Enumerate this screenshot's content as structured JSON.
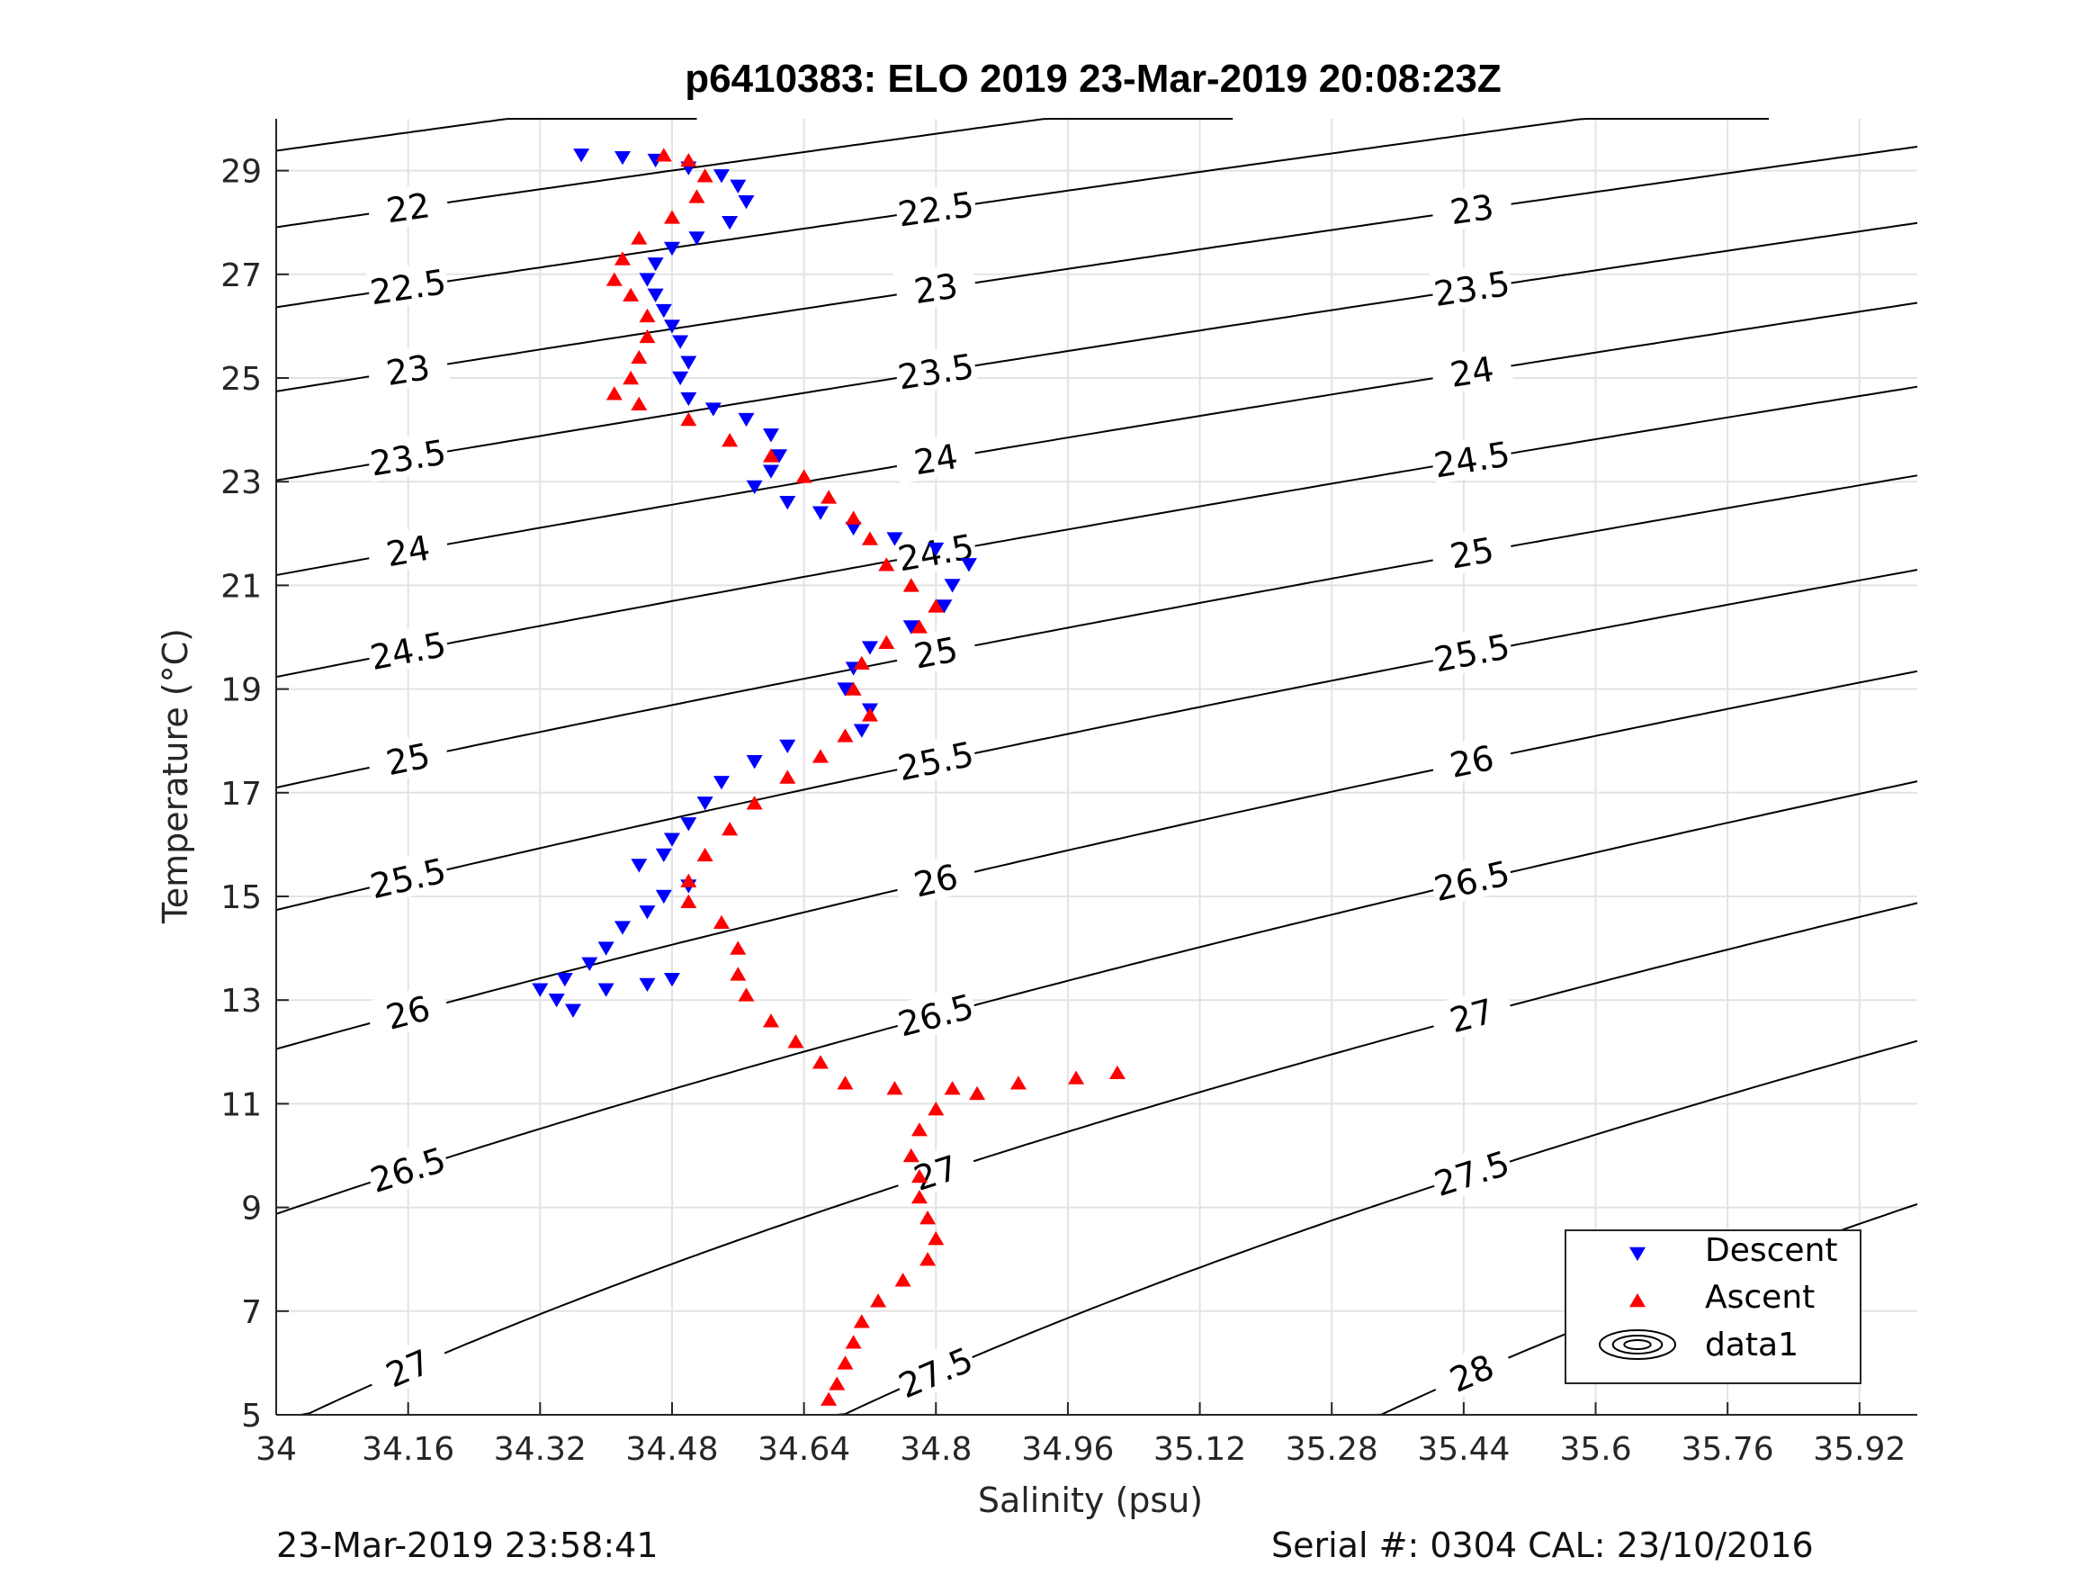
{
  "chart_data": {
    "type": "scatter",
    "title": "p6410383: ELO 2019 23-Mar-2019 20:08:23Z",
    "xlabel": "Salinity (psu)",
    "ylabel": "Temperature (°C)",
    "xlim": [
      34,
      35.99
    ],
    "ylim": [
      5,
      30
    ],
    "xticks": [
      "34",
      "34.16",
      "34.32",
      "34.48",
      "34.64",
      "34.8",
      "34.96",
      "35.12",
      "35.28",
      "35.44",
      "35.6",
      "35.76",
      "35.92"
    ],
    "yticks": [
      "5",
      "7",
      "9",
      "11",
      "13",
      "15",
      "17",
      "19",
      "21",
      "23",
      "25",
      "27",
      "29"
    ],
    "grid": true,
    "legend_position": "bottom-right",
    "legend": [
      "Descent",
      "Ascent",
      "data1"
    ],
    "contour_levels": [
      "21.5",
      "22",
      "22.5",
      "23",
      "23.5",
      "24",
      "24.5",
      "25",
      "25.5",
      "26",
      "26.5",
      "27",
      "27.5",
      "28"
    ],
    "colors": {
      "descent": "#0000ff",
      "ascent": "#ff0000",
      "contour": "#000000",
      "grid": "#e3e3e3"
    },
    "series": [
      {
        "name": "Descent",
        "marker": "triangle-down",
        "points": [
          [
            34.37,
            29.3
          ],
          [
            34.42,
            29.25
          ],
          [
            34.46,
            29.2
          ],
          [
            34.5,
            29.05
          ],
          [
            34.54,
            28.9
          ],
          [
            34.56,
            28.7
          ],
          [
            34.57,
            28.4
          ],
          [
            34.55,
            28.0
          ],
          [
            34.51,
            27.7
          ],
          [
            34.48,
            27.5
          ],
          [
            34.46,
            27.2
          ],
          [
            34.45,
            26.9
          ],
          [
            34.46,
            26.6
          ],
          [
            34.47,
            26.3
          ],
          [
            34.48,
            26.0
          ],
          [
            34.49,
            25.7
          ],
          [
            34.5,
            25.3
          ],
          [
            34.49,
            25.0
          ],
          [
            34.5,
            24.6
          ],
          [
            34.53,
            24.4
          ],
          [
            34.57,
            24.2
          ],
          [
            34.6,
            23.9
          ],
          [
            34.61,
            23.5
          ],
          [
            34.6,
            23.2
          ],
          [
            34.58,
            22.9
          ],
          [
            34.62,
            22.6
          ],
          [
            34.66,
            22.4
          ],
          [
            34.7,
            22.1
          ],
          [
            34.75,
            21.9
          ],
          [
            34.8,
            21.7
          ],
          [
            34.84,
            21.4
          ],
          [
            34.82,
            21.0
          ],
          [
            34.81,
            20.6
          ],
          [
            34.77,
            20.2
          ],
          [
            34.72,
            19.8
          ],
          [
            34.7,
            19.4
          ],
          [
            34.69,
            19.0
          ],
          [
            34.72,
            18.6
          ],
          [
            34.71,
            18.2
          ],
          [
            34.62,
            17.9
          ],
          [
            34.58,
            17.6
          ],
          [
            34.54,
            17.2
          ],
          [
            34.52,
            16.8
          ],
          [
            34.5,
            16.4
          ],
          [
            34.48,
            16.1
          ],
          [
            34.47,
            15.8
          ],
          [
            34.44,
            15.6
          ],
          [
            34.5,
            15.2
          ],
          [
            34.47,
            15.0
          ],
          [
            34.45,
            14.7
          ],
          [
            34.42,
            14.4
          ],
          [
            34.4,
            14.0
          ],
          [
            34.38,
            13.7
          ],
          [
            34.35,
            13.4
          ],
          [
            34.32,
            13.2
          ],
          [
            34.34,
            13.0
          ],
          [
            34.36,
            12.8
          ],
          [
            34.4,
            13.2
          ],
          [
            34.45,
            13.3
          ],
          [
            34.48,
            13.4
          ]
        ]
      },
      {
        "name": "Ascent",
        "marker": "triangle-up",
        "points": [
          [
            34.47,
            29.3
          ],
          [
            34.5,
            29.2
          ],
          [
            34.52,
            28.9
          ],
          [
            34.51,
            28.5
          ],
          [
            34.48,
            28.1
          ],
          [
            34.44,
            27.7
          ],
          [
            34.42,
            27.3
          ],
          [
            34.41,
            26.9
          ],
          [
            34.43,
            26.6
          ],
          [
            34.45,
            26.2
          ],
          [
            34.45,
            25.8
          ],
          [
            34.44,
            25.4
          ],
          [
            34.43,
            25.0
          ],
          [
            34.41,
            24.7
          ],
          [
            34.44,
            24.5
          ],
          [
            34.5,
            24.2
          ],
          [
            34.55,
            23.8
          ],
          [
            34.6,
            23.5
          ],
          [
            34.64,
            23.1
          ],
          [
            34.67,
            22.7
          ],
          [
            34.7,
            22.3
          ],
          [
            34.72,
            21.9
          ],
          [
            34.74,
            21.4
          ],
          [
            34.77,
            21.0
          ],
          [
            34.8,
            20.6
          ],
          [
            34.78,
            20.2
          ],
          [
            34.74,
            19.9
          ],
          [
            34.71,
            19.5
          ],
          [
            34.7,
            19.0
          ],
          [
            34.72,
            18.5
          ],
          [
            34.69,
            18.1
          ],
          [
            34.66,
            17.7
          ],
          [
            34.62,
            17.3
          ],
          [
            34.58,
            16.8
          ],
          [
            34.55,
            16.3
          ],
          [
            34.52,
            15.8
          ],
          [
            34.5,
            15.3
          ],
          [
            34.5,
            14.9
          ],
          [
            34.54,
            14.5
          ],
          [
            34.56,
            14.0
          ],
          [
            34.56,
            13.5
          ],
          [
            34.57,
            13.1
          ],
          [
            34.6,
            12.6
          ],
          [
            34.63,
            12.2
          ],
          [
            34.66,
            11.8
          ],
          [
            34.69,
            11.4
          ],
          [
            34.75,
            11.3
          ],
          [
            34.82,
            11.3
          ],
          [
            34.9,
            11.4
          ],
          [
            34.97,
            11.5
          ],
          [
            35.02,
            11.6
          ],
          [
            34.85,
            11.2
          ],
          [
            34.8,
            10.9
          ],
          [
            34.78,
            10.5
          ],
          [
            34.77,
            10.0
          ],
          [
            34.78,
            9.6
          ],
          [
            34.78,
            9.2
          ],
          [
            34.79,
            8.8
          ],
          [
            34.8,
            8.4
          ],
          [
            34.79,
            8.0
          ],
          [
            34.76,
            7.6
          ],
          [
            34.73,
            7.2
          ],
          [
            34.71,
            6.8
          ],
          [
            34.7,
            6.4
          ],
          [
            34.69,
            6.0
          ],
          [
            34.68,
            5.6
          ],
          [
            34.67,
            5.3
          ]
        ]
      }
    ]
  },
  "footer": {
    "left": "23-Mar-2019 23:58:41",
    "right": "Serial #: 0304  CAL: 23/10/2016"
  }
}
